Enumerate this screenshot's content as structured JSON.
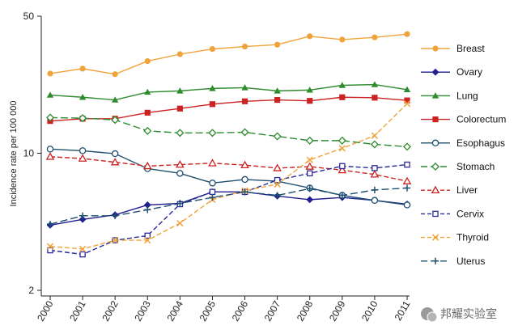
{
  "chart_data": {
    "type": "line",
    "title": "",
    "xlabel": "",
    "ylabel": "Incidence rate per 100 000",
    "y_scale": "log",
    "ylim": [
      2,
      50
    ],
    "yticks": [
      50,
      10,
      2
    ],
    "grid": false,
    "legend_position": "right",
    "x": [
      "2000",
      "2001",
      "2002",
      "2003",
      "2004",
      "2005",
      "2006",
      "2007",
      "2008",
      "2009",
      "2010",
      "2011"
    ],
    "series": [
      {
        "name": "Breast",
        "color": "#f0a33a",
        "marker": "circle-filled",
        "dash": "solid",
        "values": [
          25.5,
          27.0,
          25.3,
          29.5,
          32.0,
          34.0,
          35.0,
          35.8,
          39.5,
          38.0,
          39.0,
          40.5
        ]
      },
      {
        "name": "Ovary",
        "color": "#1f1f8f",
        "marker": "diamond-filled",
        "dash": "solid",
        "values": [
          4.3,
          4.6,
          4.85,
          5.45,
          5.55,
          6.35,
          6.35,
          6.05,
          5.8,
          5.95,
          5.75,
          5.5
        ]
      },
      {
        "name": "Lung",
        "color": "#2e8b2e",
        "marker": "triangle-filled",
        "dash": "solid",
        "values": [
          19.8,
          19.3,
          18.7,
          20.5,
          20.8,
          21.4,
          21.6,
          20.8,
          21.0,
          22.2,
          22.4,
          21.1
        ]
      },
      {
        "name": "Colorectum",
        "color": "#cc2222",
        "marker": "square-filled",
        "dash": "solid",
        "values": [
          14.6,
          15.0,
          15.0,
          16.1,
          16.9,
          17.8,
          18.4,
          18.7,
          18.5,
          19.3,
          19.2,
          18.6
        ]
      },
      {
        "name": "Esophagus",
        "color": "#1f4f6f",
        "marker": "circle-open",
        "dash": "solid",
        "values": [
          10.5,
          10.3,
          9.95,
          8.35,
          7.9,
          7.05,
          7.35,
          7.2,
          6.65,
          6.1,
          5.75,
          5.45
        ]
      },
      {
        "name": "Stomach",
        "color": "#2e8b2e",
        "marker": "diamond-open",
        "dash": "longdash",
        "values": [
          15.2,
          15.1,
          14.8,
          13.0,
          12.7,
          12.7,
          12.8,
          12.2,
          11.6,
          11.6,
          11.1,
          10.8
        ]
      },
      {
        "name": "Liver",
        "color": "#cc2222",
        "marker": "triangle-open",
        "dash": "dash",
        "values": [
          9.6,
          9.4,
          9.0,
          8.6,
          8.75,
          8.9,
          8.7,
          8.4,
          8.55,
          8.2,
          7.8,
          7.2
        ]
      },
      {
        "name": "Cervix",
        "color": "#2a2a9a",
        "marker": "square-open",
        "dash": "dash",
        "values": [
          3.2,
          3.05,
          3.6,
          3.8,
          5.5,
          6.35,
          6.35,
          7.3,
          7.9,
          8.6,
          8.4,
          8.75
        ]
      },
      {
        "name": "Thyroid",
        "color": "#f0a33a",
        "marker": "x",
        "dash": "dash",
        "values": [
          3.35,
          3.25,
          3.6,
          3.6,
          4.4,
          5.8,
          6.45,
          6.95,
          9.25,
          10.6,
          12.3,
          17.9
        ]
      },
      {
        "name": "Uterus",
        "color": "#1f4f6f",
        "marker": "plus",
        "dash": "longdash",
        "values": [
          4.35,
          4.8,
          4.8,
          5.15,
          5.55,
          5.95,
          6.35,
          6.1,
          6.6,
          6.1,
          6.5,
          6.65
        ]
      }
    ]
  },
  "watermark": {
    "text": "邦耀实验室"
  }
}
